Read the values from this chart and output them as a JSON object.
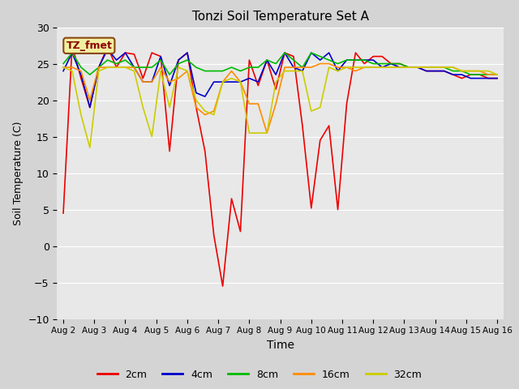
{
  "title": "Tonzi Soil Temperature Set A",
  "xlabel": "Time",
  "ylabel": "Soil Temperature (C)",
  "ylim": [
    -10,
    30
  ],
  "fig_bg_color": "#d4d4d4",
  "plot_bg_color": "#e8e8e8",
  "annotation_label": "TZ_fmet",
  "annotation_bg": "#f0f0a0",
  "annotation_border": "#8B4513",
  "annotation_text_color": "#8B0000",
  "legend_labels": [
    "2cm",
    "4cm",
    "8cm",
    "16cm",
    "32cm"
  ],
  "line_colors": [
    "#ee0000",
    "#0000cc",
    "#00bb00",
    "#ff8c00",
    "#cccc00"
  ],
  "line_width": 1.2,
  "xtick_labels": [
    "Aug 2",
    "Aug 3",
    "Aug 4",
    "Aug 5",
    "Aug 6",
    "Aug 7",
    "Aug 8",
    "Aug 9",
    "Aug 10",
    "Aug 11",
    "Aug 12",
    "Aug 13",
    "Aug 14",
    "Aug 15",
    "Aug 16"
  ],
  "series_2cm": [
    4.5,
    27.5,
    23.0,
    19.0,
    24.5,
    27.3,
    24.5,
    26.5,
    26.3,
    23.0,
    26.5,
    26.0,
    13.0,
    25.5,
    26.5,
    19.0,
    13.0,
    1.5,
    -5.5,
    6.5,
    2.0,
    25.5,
    22.0,
    25.5,
    21.5,
    26.5,
    26.0,
    16.5,
    5.2,
    14.5,
    16.5,
    5.0,
    19.5,
    26.5,
    25.0,
    26.0,
    26.0,
    25.0,
    25.0,
    24.5,
    24.5,
    24.0,
    24.0,
    24.0,
    23.5,
    23.0,
    23.5,
    23.5,
    23.0,
    23.0
  ],
  "series_4cm": [
    24.0,
    26.5,
    23.5,
    19.0,
    24.5,
    27.0,
    25.5,
    26.5,
    24.5,
    22.5,
    22.5,
    26.0,
    22.0,
    25.5,
    26.5,
    21.0,
    20.5,
    22.5,
    22.5,
    22.5,
    22.5,
    23.0,
    22.5,
    25.5,
    23.5,
    26.5,
    24.5,
    24.0,
    26.5,
    25.5,
    26.5,
    24.0,
    25.5,
    25.5,
    25.5,
    25.5,
    24.5,
    25.0,
    24.5,
    24.5,
    24.5,
    24.0,
    24.0,
    24.0,
    23.5,
    23.5,
    23.0,
    23.0,
    23.0,
    23.0
  ],
  "series_8cm": [
    25.0,
    26.5,
    24.5,
    23.5,
    24.5,
    25.5,
    25.0,
    25.5,
    24.5,
    24.5,
    24.5,
    25.5,
    23.5,
    25.0,
    25.5,
    24.5,
    24.0,
    24.0,
    24.0,
    24.5,
    24.0,
    24.5,
    24.5,
    25.5,
    25.0,
    26.5,
    25.5,
    24.5,
    26.5,
    26.0,
    25.5,
    25.0,
    25.5,
    25.5,
    25.5,
    25.0,
    25.0,
    25.0,
    25.0,
    24.5,
    24.5,
    24.5,
    24.5,
    24.5,
    24.0,
    24.0,
    23.5,
    23.5,
    23.5,
    23.5
  ],
  "series_16cm": [
    24.5,
    24.5,
    24.0,
    20.0,
    24.5,
    24.5,
    24.5,
    24.5,
    24.5,
    22.5,
    22.5,
    24.5,
    22.5,
    23.0,
    24.0,
    19.0,
    18.0,
    18.5,
    22.5,
    24.0,
    22.5,
    19.5,
    19.5,
    15.5,
    19.5,
    24.5,
    24.5,
    24.5,
    24.5,
    25.0,
    25.0,
    24.5,
    24.5,
    24.0,
    24.5,
    24.5,
    24.5,
    24.5,
    24.5,
    24.5,
    24.5,
    24.5,
    24.5,
    24.5,
    24.5,
    24.0,
    24.0,
    24.0,
    23.5,
    23.5
  ],
  "series_32cm": [
    24.5,
    24.0,
    18.0,
    13.5,
    24.0,
    24.5,
    24.5,
    24.5,
    24.0,
    19.0,
    15.0,
    24.0,
    19.0,
    24.5,
    24.0,
    20.0,
    18.5,
    18.0,
    22.5,
    23.0,
    22.5,
    15.5,
    15.5,
    15.5,
    22.5,
    24.0,
    24.0,
    24.0,
    18.5,
    19.0,
    24.5,
    24.0,
    24.5,
    24.5,
    24.5,
    24.5,
    24.5,
    24.5,
    24.5,
    24.5,
    24.5,
    24.5,
    24.5,
    24.5,
    24.5,
    24.0,
    24.0,
    24.0,
    24.0,
    23.5
  ]
}
